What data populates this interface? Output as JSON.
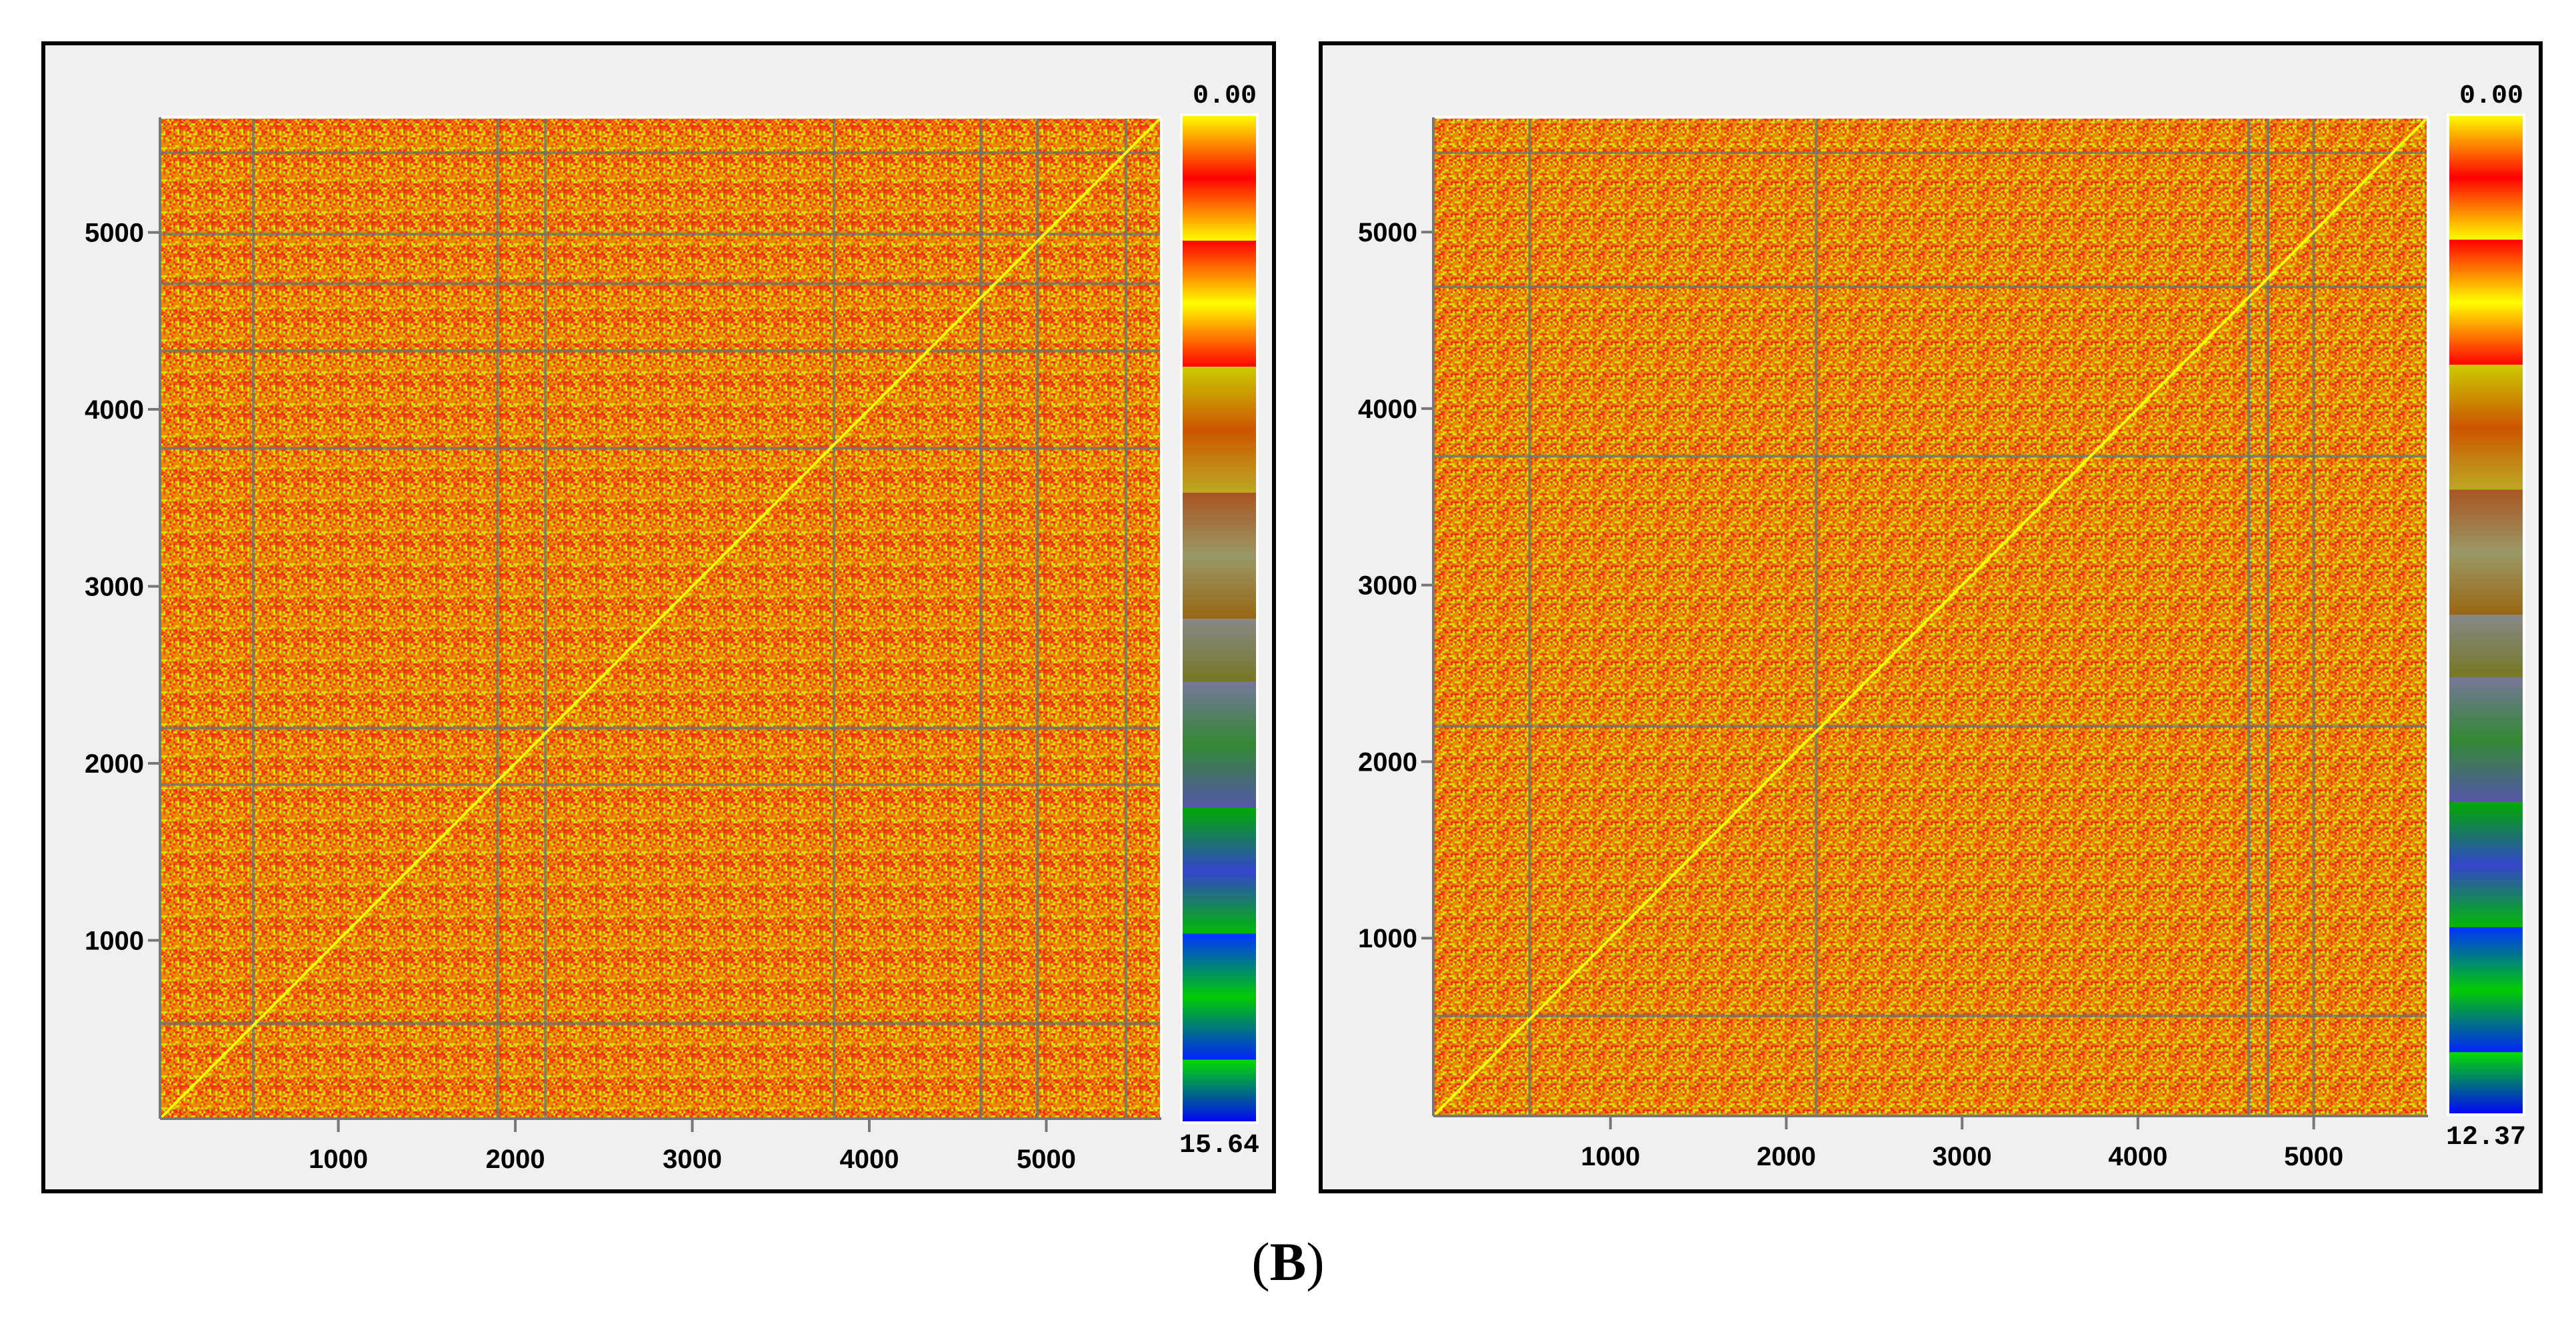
{
  "caption": {
    "open": "(",
    "letter": "B",
    "close": ")"
  },
  "chart_data": [
    {
      "type": "heatmap",
      "title": "",
      "xlabel": "",
      "ylabel": "",
      "xlim": [
        0,
        5650
      ],
      "ylim": [
        0,
        5650
      ],
      "x_ticks": [
        1000,
        2000,
        3000,
        4000,
        5000
      ],
      "y_ticks": [
        1000,
        2000,
        3000,
        4000,
        5000
      ],
      "colorbar": {
        "top_label": "0.00",
        "bottom_label": "15.64",
        "min": 0.0,
        "max": 15.64
      },
      "diagonal": true,
      "vertical_lines": [
        520,
        1900,
        2170,
        3800,
        4630,
        4950,
        5450
      ],
      "horizontal_lines": [
        530,
        1880,
        2200,
        3780,
        4330,
        4710,
        4990,
        5450
      ]
    },
    {
      "type": "heatmap",
      "title": "",
      "xlabel": "",
      "ylabel": "",
      "xlim": [
        0,
        5650
      ],
      "ylim": [
        0,
        5650
      ],
      "x_ticks": [
        1000,
        2000,
        3000,
        4000,
        5000
      ],
      "y_ticks": [
        1000,
        2000,
        3000,
        4000,
        5000
      ],
      "colorbar": {
        "top_label": "0.00",
        "bottom_label": "12.37",
        "min": 0.0,
        "max": 12.37
      },
      "diagonal": true,
      "vertical_lines": [
        540,
        2170,
        4630,
        4740,
        5000
      ],
      "horizontal_lines": [
        560,
        2200,
        3730,
        4690,
        5450
      ]
    }
  ],
  "colorbar_colors": [
    "#ffff00",
    "#ff0000",
    "#ffff00",
    "#ff0000",
    "#ffff00",
    "#ff0000",
    "#cccc00",
    "#cc5500",
    "#bbaa22",
    "#aa5522",
    "#999966",
    "#996611",
    "#888888",
    "#777722",
    "#777799",
    "#338833",
    "#5555aa",
    "#00aa00",
    "#3344cc",
    "#00bb00",
    "#0033ff",
    "#00cc00",
    "#0022ff",
    "#00dd00",
    "#0000ff",
    "#00ff00"
  ],
  "palette": {
    "red": "#ee3311",
    "orange": "#ee8800",
    "yellow": "#dddd00",
    "grid_line": "#607878",
    "diagonal": "#ffff00"
  }
}
